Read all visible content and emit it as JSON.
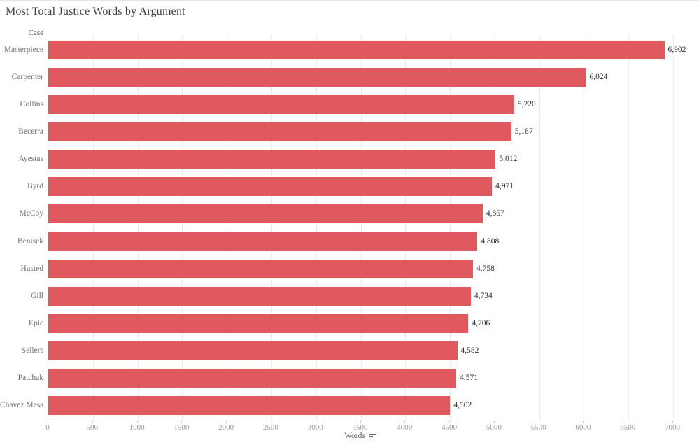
{
  "title": "Most Total Justice Words by Argument",
  "row_header": "Case",
  "axis": {
    "label": "Words",
    "sort_icon": "sort-descending-icon"
  },
  "colors": {
    "bar": "#e0595e",
    "grid": "#eaeaea",
    "axis_rule": "#dadada",
    "tick_mark": "#cfcfcf",
    "title_text": "#3f3f3f",
    "case_label_text": "#707070",
    "value_label_text": "#2b2b2b",
    "tick_label_text": "#9b9b9b"
  },
  "chart_data": {
    "type": "bar",
    "orientation": "horizontal",
    "title": "Most Total Justice Words by Argument",
    "xlabel": "Words",
    "ylabel": "Case",
    "categories": [
      "Masterpiece",
      "Carpenter",
      "Collins",
      "Becerra",
      "Ayestas",
      "Byrd",
      "McCoy",
      "Benisek",
      "Husted",
      "Gill",
      "Epic",
      "Sellers",
      "Patchak",
      "Chavez Mesa"
    ],
    "values": [
      6902,
      6024,
      5220,
      5187,
      5012,
      4971,
      4867,
      4808,
      4758,
      4734,
      4706,
      4582,
      4571,
      4502
    ],
    "value_labels": [
      "6,902",
      "6,024",
      "5,220",
      "5,187",
      "5,012",
      "4,971",
      "4,867",
      "4,808",
      "4,758",
      "4,734",
      "4,706",
      "4,582",
      "4,571",
      "4,502"
    ],
    "xlim": [
      0,
      7000
    ],
    "xticks": [
      0,
      500,
      1000,
      1500,
      2000,
      2500,
      3000,
      3500,
      4000,
      4500,
      5000,
      5500,
      6000,
      6500,
      7000
    ],
    "xtick_labels": [
      "0",
      "500",
      "1000",
      "1500",
      "2000",
      "2500",
      "3000",
      "3500",
      "4000",
      "4500",
      "5000",
      "5500",
      "6000",
      "6500",
      "7000"
    ],
    "grid": true,
    "legend": false,
    "sort": "descending"
  }
}
